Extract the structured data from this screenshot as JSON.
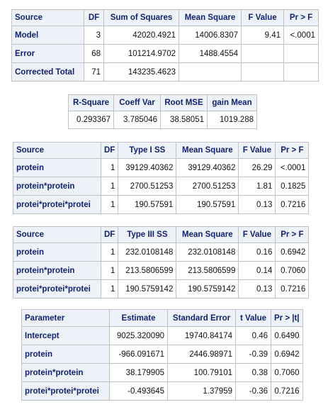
{
  "anova": {
    "headers": [
      "Source",
      "DF",
      "Sum of Squares",
      "Mean Square",
      "F Value",
      "Pr > F"
    ],
    "rows": [
      {
        "source": "Model",
        "df": "3",
        "ss": "42020.4921",
        "ms": "14006.8307",
        "f": "9.41",
        "p": "<.0001"
      },
      {
        "source": "Error",
        "df": "68",
        "ss": "101214.9702",
        "ms": "1488.4554",
        "f": "",
        "p": ""
      },
      {
        "source": "Corrected Total",
        "df": "71",
        "ss": "143235.4623",
        "ms": "",
        "f": "",
        "p": ""
      }
    ]
  },
  "fit": {
    "headers": [
      "R-Square",
      "Coeff Var",
      "Root MSE",
      "gain Mean"
    ],
    "values": [
      "0.293367",
      "3.785046",
      "38.58051",
      "1019.288"
    ]
  },
  "type1": {
    "headers": [
      "Source",
      "DF",
      "Type I SS",
      "Mean Square",
      "F Value",
      "Pr > F"
    ],
    "rows": [
      {
        "source": "protein",
        "df": "1",
        "ss": "39129.40362",
        "ms": "39129.40362",
        "f": "26.29",
        "p": "<.0001"
      },
      {
        "source": "protein*protein",
        "df": "1",
        "ss": "2700.51253",
        "ms": "2700.51253",
        "f": "1.81",
        "p": "0.1825"
      },
      {
        "source": "protei*protei*protei",
        "df": "1",
        "ss": "190.57591",
        "ms": "190.57591",
        "f": "0.13",
        "p": "0.7216"
      }
    ]
  },
  "type3": {
    "headers": [
      "Source",
      "DF",
      "Type III SS",
      "Mean Square",
      "F Value",
      "Pr > F"
    ],
    "rows": [
      {
        "source": "protein",
        "df": "1",
        "ss": "232.0108148",
        "ms": "232.0108148",
        "f": "0.16",
        "p": "0.6942"
      },
      {
        "source": "protein*protein",
        "df": "1",
        "ss": "213.5806599",
        "ms": "213.5806599",
        "f": "0.14",
        "p": "0.7060"
      },
      {
        "source": "protei*protei*protei",
        "df": "1",
        "ss": "190.5759142",
        "ms": "190.5759142",
        "f": "0.13",
        "p": "0.7216"
      }
    ]
  },
  "params": {
    "headers": [
      "Parameter",
      "Estimate",
      "Standard Error",
      "t Value",
      "Pr > |t|"
    ],
    "rows": [
      {
        "name": "Intercept",
        "est": "9025.320090",
        "se": "19740.84174",
        "t": "0.46",
        "p": "0.6490"
      },
      {
        "name": "protein",
        "est": "-966.091671",
        "se": "2446.98971",
        "t": "-0.39",
        "p": "0.6942"
      },
      {
        "name": "protein*protein",
        "est": "38.179905",
        "se": "100.79101",
        "t": "0.38",
        "p": "0.7060"
      },
      {
        "name": "protei*protei*protei",
        "est": "-0.493645",
        "se": "1.37959",
        "t": "-0.36",
        "p": "0.7216"
      }
    ]
  }
}
